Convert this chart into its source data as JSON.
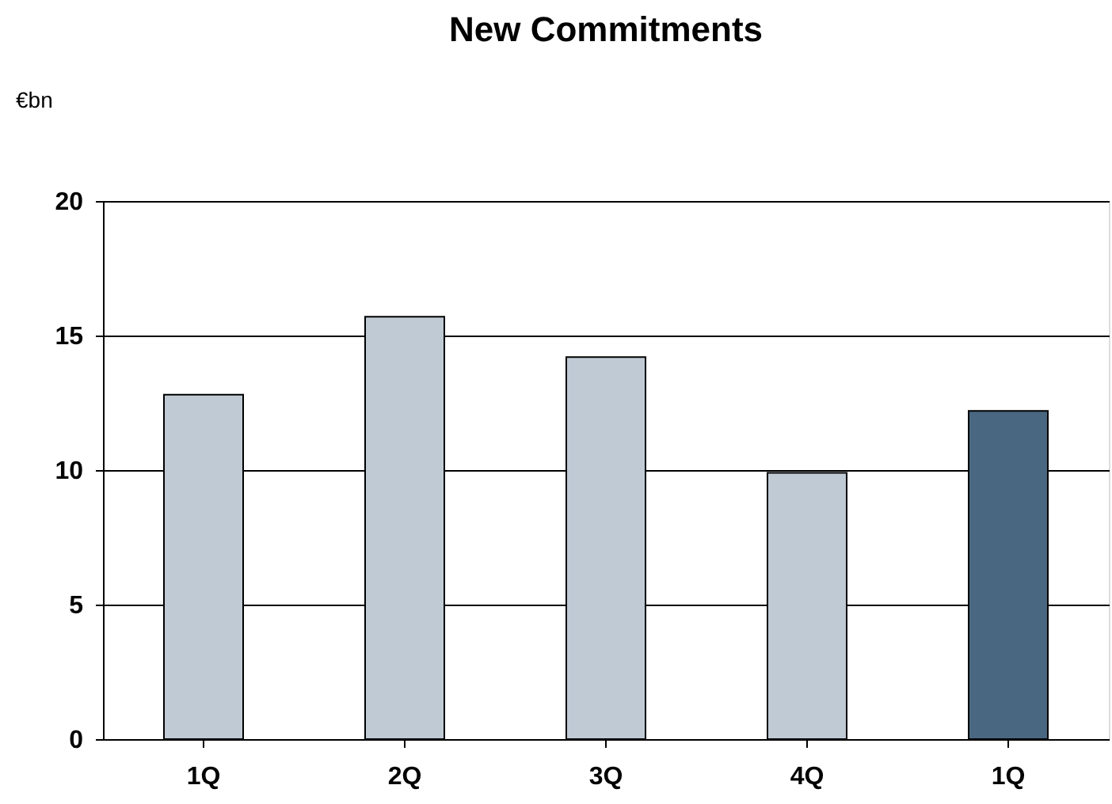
{
  "chart_data": {
    "type": "bar",
    "title": "New Commitments",
    "annotations": [
      "€bn"
    ],
    "categories": [
      "1Q",
      "2Q",
      "3Q",
      "4Q",
      "1Q"
    ],
    "values": [
      12.8,
      15.7,
      14.2,
      9.9,
      12.2
    ],
    "colors": [
      "#c0cad5",
      "#c0cad5",
      "#c0cad5",
      "#c0cad5",
      "#4a6781"
    ],
    "ylim": [
      0,
      20
    ],
    "yticks": [
      0,
      5,
      10,
      15,
      20
    ],
    "grid": "y"
  }
}
